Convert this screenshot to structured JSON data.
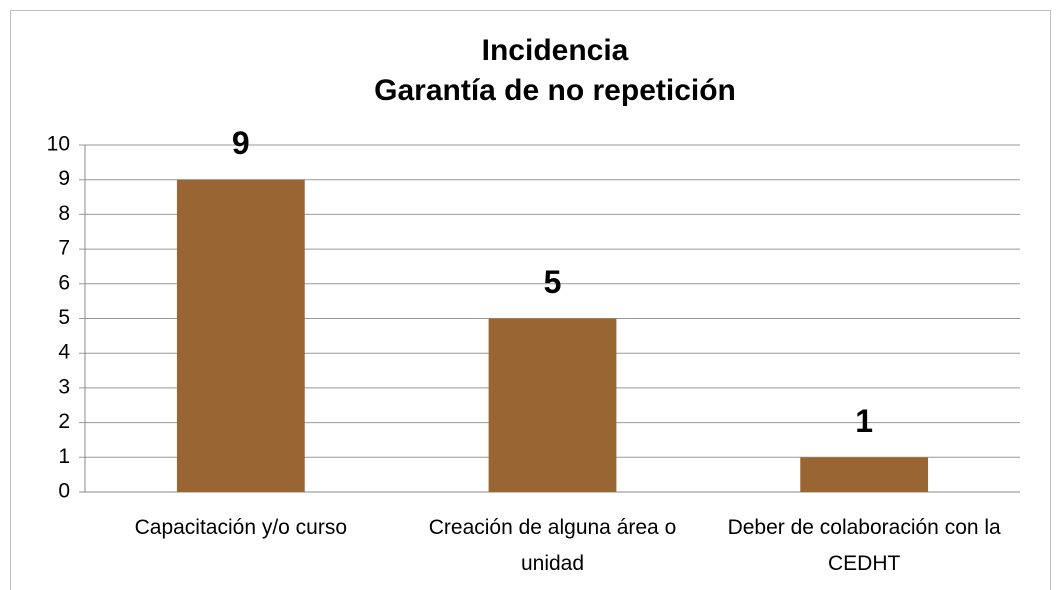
{
  "chart_data": {
    "type": "bar",
    "title": [
      "Incidencia",
      "Garantía de no repetición"
    ],
    "categories": [
      "Capacitación y/o curso",
      "Creación de alguna área o unidad",
      "Deber de colaboración con la CEDHT"
    ],
    "values": [
      9,
      5,
      1
    ],
    "color": "#996633",
    "ylim": [
      0,
      10
    ],
    "yticks": [
      0,
      1,
      2,
      3,
      4,
      5,
      6,
      7,
      8,
      9,
      10
    ],
    "grid": true
  }
}
